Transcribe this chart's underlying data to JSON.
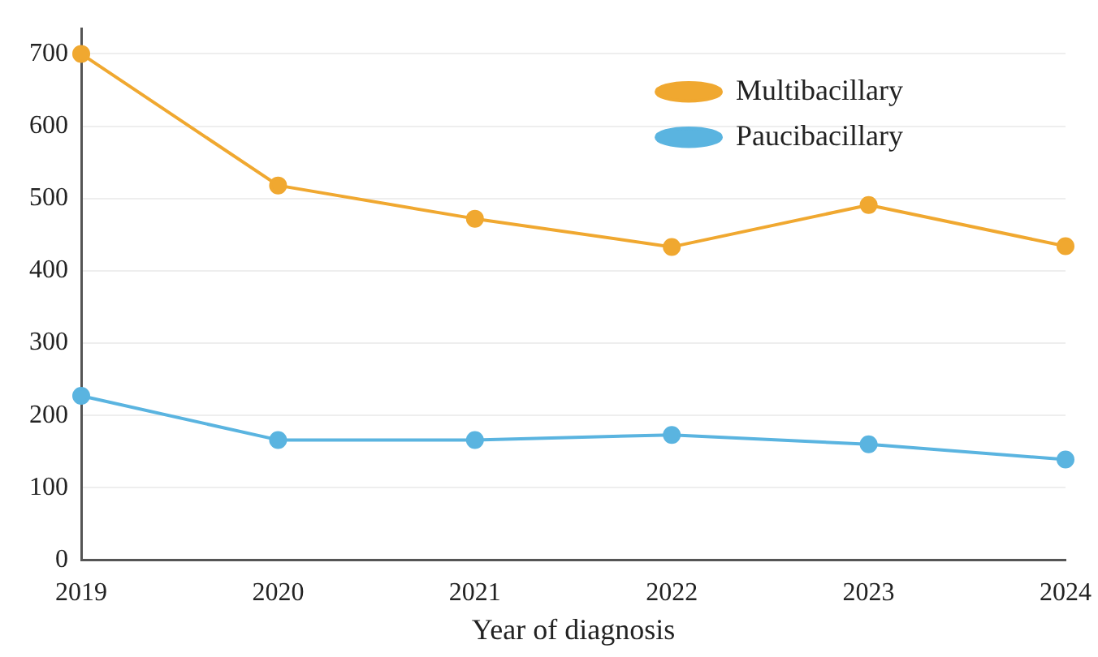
{
  "chart_data": {
    "type": "line",
    "xlabel": "Year of diagnosis",
    "categories": [
      "2019",
      "2020",
      "2021",
      "2022",
      "2023",
      "2024"
    ],
    "series": [
      {
        "name": "Multibacillary",
        "color": "#f0a830",
        "values": [
          700,
          518,
          472,
          433,
          491,
          434
        ]
      },
      {
        "name": "Paucibacillary",
        "color": "#5ab4e0",
        "values": [
          227,
          166,
          166,
          173,
          160,
          139
        ]
      }
    ],
    "ylim": [
      0,
      735
    ],
    "yticks": [
      0,
      100,
      200,
      300,
      400,
      500,
      600,
      700
    ],
    "grid": "y",
    "legend": "top right",
    "marker": "circle",
    "line_style": "solid"
  }
}
